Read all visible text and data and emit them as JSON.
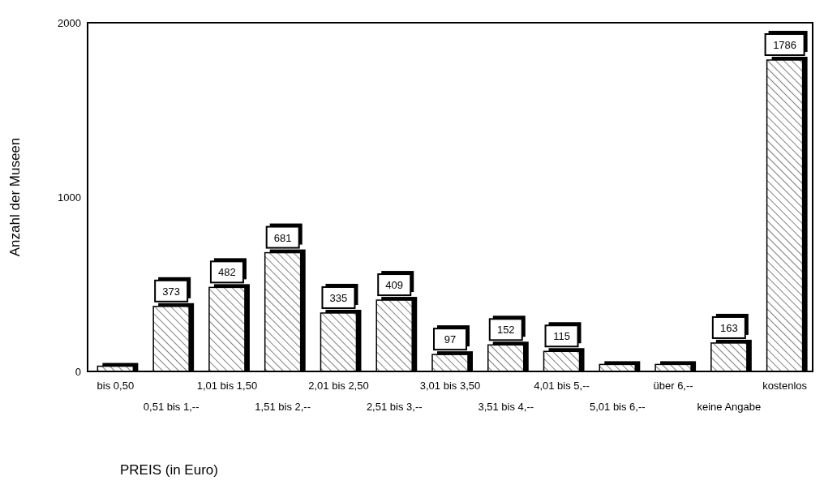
{
  "chart_data": {
    "type": "bar",
    "xlabel": "PREIS (in Euro)",
    "ylabel": "Anzahl der Museen",
    "categories": [
      "bis 0,50",
      "0,51 bis 1,--",
      "1,01 bis 1,50",
      "1,51 bis 2,--",
      "2,01 bis 2,50",
      "2,51 bis 3,--",
      "3,01 bis 3,50",
      "3,51 bis 4,--",
      "4,01 bis 5,--",
      "5,01 bis 6,--",
      "über 6,--",
      "keine Angabe",
      "kostenlos"
    ],
    "values": [
      30,
      373,
      482,
      681,
      335,
      409,
      97,
      152,
      115,
      40,
      40,
      163,
      1786
    ],
    "value_labels": [
      null,
      "373",
      "482",
      "681",
      "335",
      "409",
      "97",
      "152",
      "115",
      null,
      null,
      "163",
      "1786"
    ],
    "color": "#000000",
    "ylim": [
      0,
      2000
    ],
    "yticks": [
      0,
      1000,
      2000
    ],
    "grid": false,
    "legend": false
  }
}
